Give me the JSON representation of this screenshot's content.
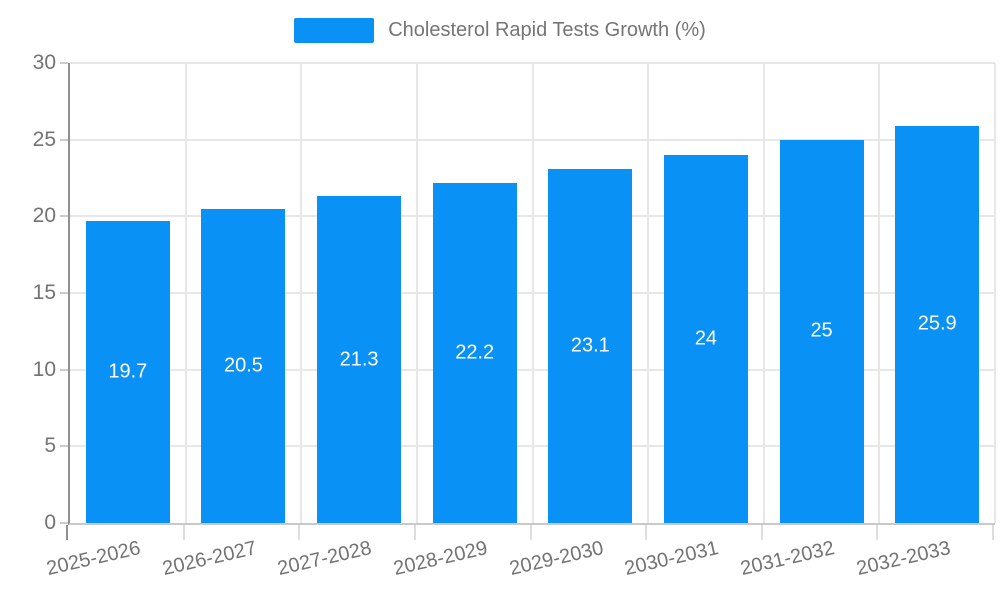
{
  "legend": {
    "label": "Cholesterol Rapid Tests Growth (%)"
  },
  "chart_data": {
    "type": "bar",
    "title": "Cholesterol Rapid Tests Growth (%)",
    "categories": [
      "2025-2026",
      "2026-2027",
      "2027-2028",
      "2028-2029",
      "2029-2030",
      "2030-2031",
      "2031-2032",
      "2032-2033"
    ],
    "values": [
      19.7,
      20.5,
      21.3,
      22.2,
      23.1,
      24,
      25,
      25.9
    ],
    "value_labels": [
      "19.7",
      "20.5",
      "21.3",
      "22.2",
      "23.1",
      "24",
      "25",
      "25.9"
    ],
    "xlabel": "",
    "ylabel": "",
    "ylim": [
      0,
      30
    ],
    "yticks": [
      0,
      5,
      10,
      15,
      20,
      25,
      30
    ],
    "grid": true,
    "legend_position": "top-center",
    "bar_color": "#0a91f5",
    "value_label_color": "#ffffff",
    "axis_text_color": "#737373"
  }
}
